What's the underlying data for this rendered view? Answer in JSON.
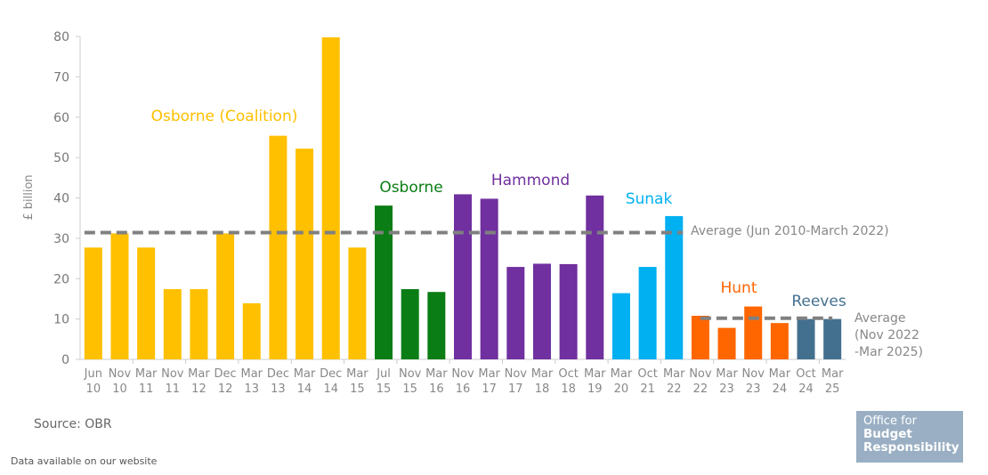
{
  "chart_data": {
    "type": "bar",
    "ylabel": "£ billion",
    "ylim": [
      0,
      80
    ],
    "yticks": [
      0,
      10,
      20,
      30,
      40,
      50,
      60,
      70,
      80
    ],
    "grid": false,
    "categories": [
      [
        "Jun",
        "10"
      ],
      [
        "Nov",
        "10"
      ],
      [
        "Mar",
        "11"
      ],
      [
        "Nov",
        "11"
      ],
      [
        "Mar",
        "12"
      ],
      [
        "Dec",
        "12"
      ],
      [
        "Mar",
        "13"
      ],
      [
        "Dec",
        "13"
      ],
      [
        "Mar",
        "14"
      ],
      [
        "Dec",
        "14"
      ],
      [
        "Mar",
        "15"
      ],
      [
        "Jul",
        "15"
      ],
      [
        "Nov",
        "15"
      ],
      [
        "Mar",
        "16"
      ],
      [
        "Nov",
        "16"
      ],
      [
        "Mar",
        "17"
      ],
      [
        "Nov",
        "17"
      ],
      [
        "Mar",
        "18"
      ],
      [
        "Oct",
        "18"
      ],
      [
        "Mar",
        "19"
      ],
      [
        "Mar",
        "20"
      ],
      [
        "Oct",
        "21"
      ],
      [
        "Mar",
        "22"
      ],
      [
        "Nov",
        "22"
      ],
      [
        "Mar",
        "23"
      ],
      [
        "Nov",
        "23"
      ],
      [
        "Mar",
        "24"
      ],
      [
        "Oct",
        "24"
      ],
      [
        "Mar",
        "25"
      ]
    ],
    "values": [
      27.7,
      31.2,
      27.7,
      17.4,
      17.4,
      31.2,
      13.9,
      55.4,
      52.2,
      79.8,
      27.7,
      38.1,
      17.4,
      16.7,
      40.9,
      39.8,
      22.9,
      23.7,
      23.6,
      40.6,
      16.4,
      22.9,
      35.5,
      10.8,
      7.8,
      13.1,
      9.0,
      10.0,
      10.0
    ],
    "groups": [
      {
        "name": "Osborne (Coalition)",
        "start": 0,
        "end": 10,
        "color": "#FFC000"
      },
      {
        "name": "Osborne",
        "start": 11,
        "end": 13,
        "color": "#0A7D14"
      },
      {
        "name": "Hammond",
        "start": 14,
        "end": 19,
        "color": "#7030A0"
      },
      {
        "name": "Sunak",
        "start": 20,
        "end": 22,
        "color": "#00B0F0"
      },
      {
        "name": "Hunt",
        "start": 23,
        "end": 26,
        "color": "#FF6600"
      },
      {
        "name": "Reeves",
        "start": 27,
        "end": 28,
        "color": "#44708F"
      }
    ],
    "averages": [
      {
        "label": "Average (Jun 2010-March 2022)",
        "value": 31.4,
        "start": 0,
        "end": 22
      },
      {
        "label_lines": [
          "Average",
          "(Nov 2022",
          "-Mar 2025)"
        ],
        "value": 10.2,
        "start": 23,
        "end": 28
      }
    ]
  },
  "footer": {
    "source": "Source: OBR",
    "data_note": "Data available on our website"
  },
  "logo": {
    "line1": "Office for",
    "line2": "Budget",
    "line3": "Responsibility",
    "bg": "#9AAFC3"
  }
}
